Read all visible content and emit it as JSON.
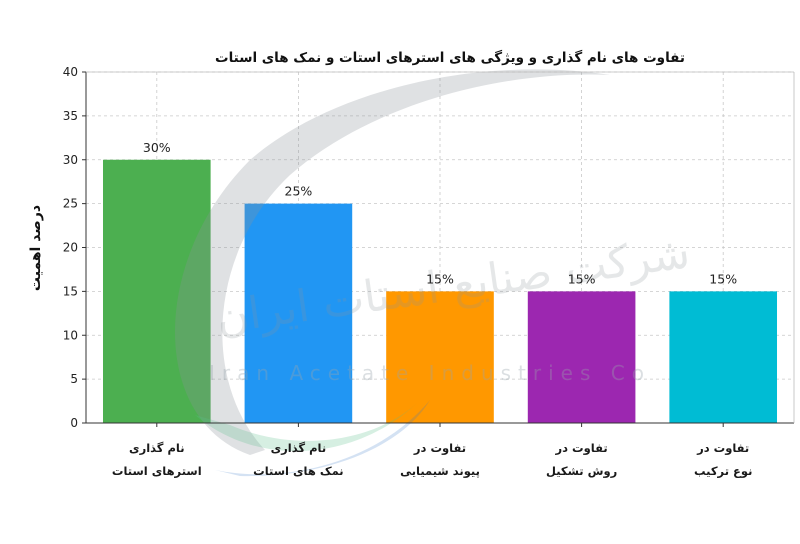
{
  "chart_data": {
    "type": "bar",
    "title": "تفاوت های نام گذاری و ویژگی های استرهای استات و نمک های استات",
    "xlabel": "",
    "ylabel": "درصد اهمیت",
    "ylim": [
      0,
      40
    ],
    "yticks": [
      0,
      5,
      10,
      15,
      20,
      25,
      30,
      35,
      40
    ],
    "grid": true,
    "categories": [
      [
        "نام گذاری",
        "استرهای استات"
      ],
      [
        "نام گذاری",
        "نمک های استات"
      ],
      [
        "تفاوت در",
        "پیوند شیمیایی"
      ],
      [
        "تفاوت در",
        "روش تشکیل"
      ],
      [
        "تفاوت در",
        "نوع ترکیب"
      ]
    ],
    "values": [
      30,
      25,
      15,
      15,
      15
    ],
    "value_labels": [
      "30%",
      "25%",
      "15%",
      "15%",
      "15%"
    ],
    "colors": [
      "#4caf50",
      "#2196f3",
      "#ff9800",
      "#9c27b0",
      "#00bcd4"
    ]
  },
  "watermark": {
    "logo_text": "شرکت صنایع استات ایران",
    "company_text": "Iran Acetate Industries Co"
  }
}
